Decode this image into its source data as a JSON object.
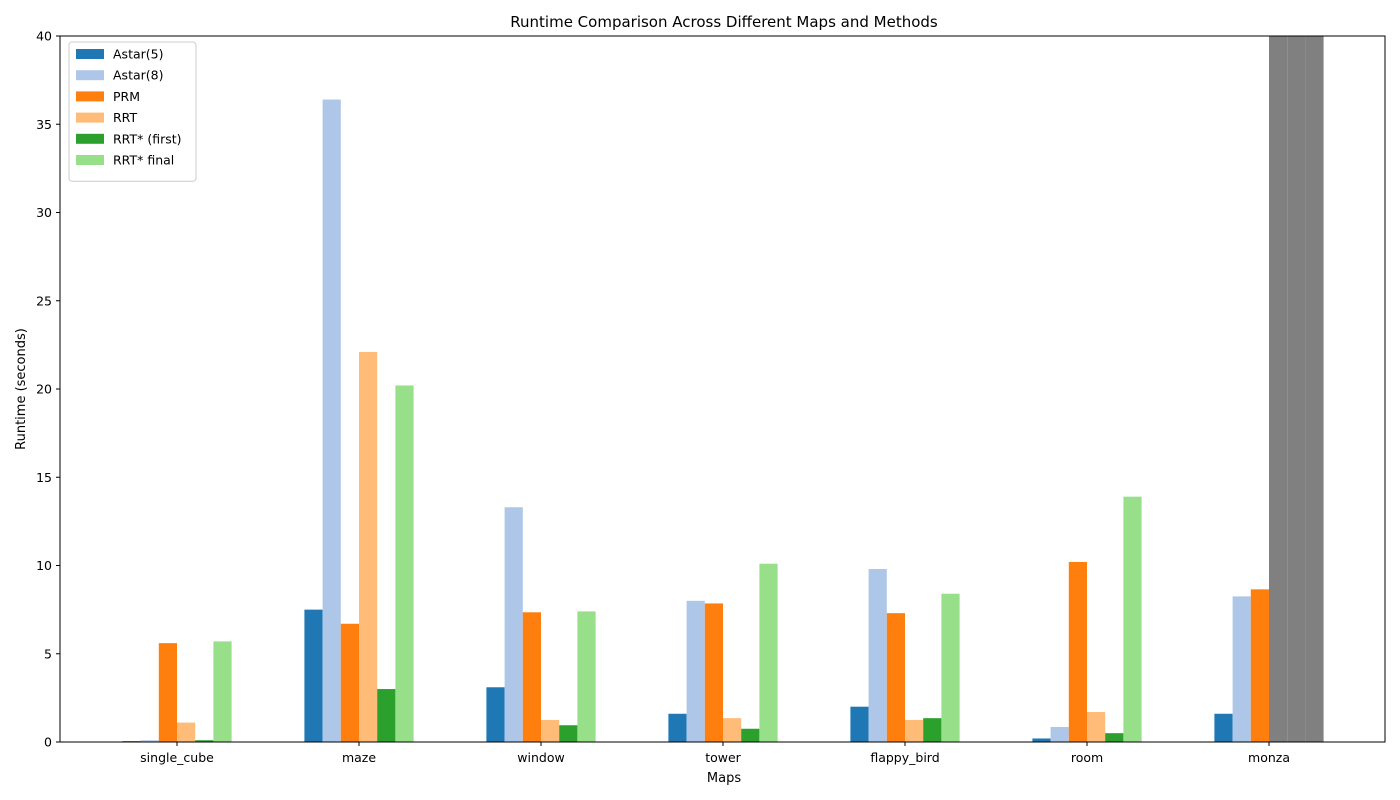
{
  "chart_data": {
    "type": "bar",
    "title": "Runtime Comparison Across Different Maps and Methods",
    "xlabel": "Maps",
    "ylabel": "Runtime (seconds)",
    "ylim": [
      0,
      40
    ],
    "yticks": [
      0,
      5,
      10,
      15,
      20,
      25,
      30,
      35,
      40
    ],
    "grid": false,
    "legend_position": "top-left",
    "categories": [
      "single_cube",
      "maze",
      "window",
      "tower",
      "flappy_bird",
      "room",
      "monza"
    ],
    "series": [
      {
        "name": "Astar(5)",
        "color": "#1f77b4",
        "values": [
          0.05,
          7.5,
          3.1,
          1.6,
          2.0,
          0.2,
          1.6
        ]
      },
      {
        "name": "Astar(8)",
        "color": "#aec7e8",
        "values": [
          0.1,
          36.4,
          13.3,
          8.0,
          9.8,
          0.85,
          8.25
        ]
      },
      {
        "name": "PRM",
        "color": "#ff7f0e",
        "values": [
          5.6,
          6.7,
          7.35,
          7.85,
          7.3,
          10.2,
          8.65
        ]
      },
      {
        "name": "RRT",
        "color": "#ffbb78",
        "values": [
          1.1,
          22.1,
          1.25,
          1.35,
          1.25,
          1.7,
          40
        ]
      },
      {
        "name": "RRT* (first)",
        "color": "#2ca02c",
        "values": [
          0.1,
          3.0,
          0.95,
          0.75,
          1.35,
          0.5,
          40
        ]
      },
      {
        "name": "RRT* final",
        "color": "#98df8a",
        "values": [
          5.7,
          20.2,
          7.4,
          10.1,
          8.4,
          13.9,
          40
        ]
      }
    ],
    "overflow_color": "#808080"
  }
}
